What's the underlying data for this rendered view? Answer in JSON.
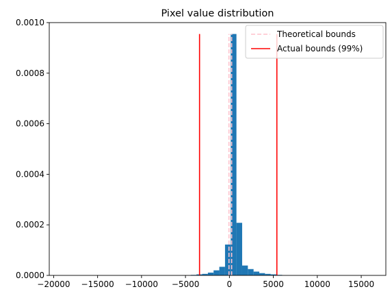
{
  "chart_data": {
    "type": "bar",
    "title": "Pixel value distribution",
    "xlabel": "",
    "ylabel": "",
    "xlim": [
      -20500,
      17800
    ],
    "ylim": [
      0,
      0.001
    ],
    "xticks": [
      -20000,
      -15000,
      -10000,
      -5000,
      0,
      5000,
      10000,
      15000
    ],
    "xtick_labels": [
      "−20000",
      "−15000",
      "−10000",
      "−5000",
      "0",
      "5000",
      "10000",
      "15000"
    ],
    "yticks": [
      0,
      0.0002,
      0.0004,
      0.0006,
      0.0008,
      0.001
    ],
    "ytick_labels": [
      "0.0000",
      "0.0002",
      "0.0004",
      "0.0006",
      "0.0008",
      "0.0010"
    ],
    "grid": false,
    "legend_position": "top-right",
    "histogram": {
      "color": "#1f77b4",
      "bin_width": 650,
      "bins": [
        {
          "x0": -4400,
          "x1": -3750,
          "value": 2e-06
        },
        {
          "x0": -3750,
          "x1": -3100,
          "value": 4e-06
        },
        {
          "x0": -3100,
          "x1": -2450,
          "value": 6e-06
        },
        {
          "x0": -2450,
          "x1": -1800,
          "value": 1.1e-05
        },
        {
          "x0": -1800,
          "x1": -1150,
          "value": 2e-05
        },
        {
          "x0": -1150,
          "x1": -500,
          "value": 3.4e-05
        },
        {
          "x0": -500,
          "x1": 150,
          "value": 0.000122
        },
        {
          "x0": 150,
          "x1": 800,
          "value": 0.000955
        },
        {
          "x0": 800,
          "x1": 1450,
          "value": 0.000208
        },
        {
          "x0": 1450,
          "x1": 2100,
          "value": 3.9e-05
        },
        {
          "x0": 2100,
          "x1": 2750,
          "value": 2.5e-05
        },
        {
          "x0": 2750,
          "x1": 3400,
          "value": 1.5e-05
        },
        {
          "x0": 3400,
          "x1": 4050,
          "value": 9e-06
        },
        {
          "x0": 4050,
          "x1": 4700,
          "value": 6e-06
        },
        {
          "x0": 4700,
          "x1": 5350,
          "value": 4e-06
        },
        {
          "x0": 5350,
          "x1": 6000,
          "value": 2e-06
        }
      ]
    },
    "lines": [
      {
        "name": "Theoretical bounds",
        "color": "#ffc0cb",
        "dashed": true,
        "x": -50,
        "y0": 0,
        "y1": 0.000955
      },
      {
        "name": "Theoretical bounds",
        "color": "#ffc0cb",
        "dashed": true,
        "x": 255,
        "y0": 0,
        "y1": 0.000955
      },
      {
        "name": "Actual bounds (99%)",
        "color": "#ff0000",
        "dashed": false,
        "x": -3400,
        "y0": 0,
        "y1": 0.000955
      },
      {
        "name": "Actual bounds (99%)",
        "color": "#ff0000",
        "dashed": false,
        "x": 5400,
        "y0": 0,
        "y1": 0.000955
      }
    ],
    "legend": [
      {
        "label": "Theoretical bounds",
        "color": "#ffc0cb",
        "dashed": true
      },
      {
        "label": "Actual bounds (99%)",
        "color": "#ff0000",
        "dashed": false
      }
    ]
  }
}
